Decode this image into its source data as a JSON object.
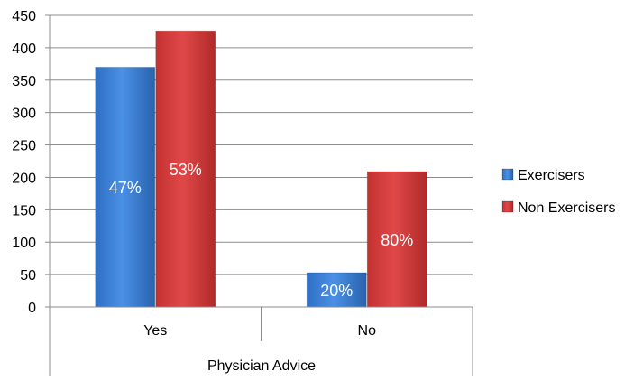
{
  "chart_data": {
    "type": "bar",
    "categories": [
      "Yes",
      "No"
    ],
    "group_label": "Physician Advice",
    "series": [
      {
        "name": "Exercisers",
        "values": [
          370,
          53
        ],
        "labels": [
          "47%",
          "20%"
        ],
        "color": "#3a7fd5"
      },
      {
        "name": "Non Exercisers",
        "values": [
          426,
          209
        ],
        "labels": [
          "53%",
          "80%"
        ],
        "color": "#d63b3b"
      }
    ],
    "yticks": [
      0,
      50,
      100,
      150,
      200,
      250,
      300,
      350,
      400,
      450
    ],
    "ylim": [
      0,
      450
    ],
    "grid": true,
    "legend_position": "right"
  }
}
